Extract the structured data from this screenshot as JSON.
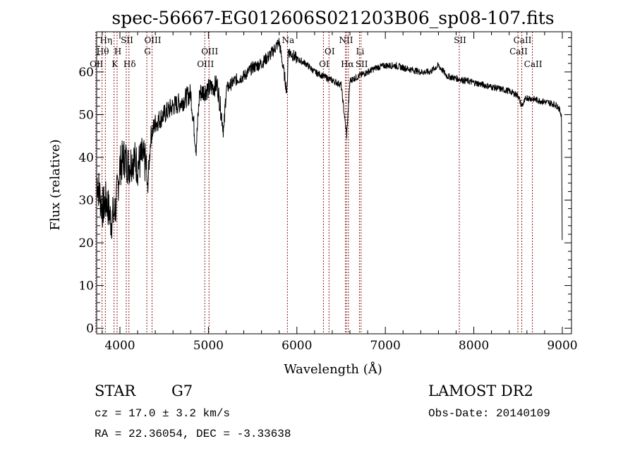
{
  "chart_data": {
    "type": "line",
    "title": "spec-56667-EG012606S021203B06_sp08-107.fits",
    "xlabel": "Wavelength (Å)",
    "ylabel": "Flux (relative)",
    "xlim": [
      3737,
      9104
    ],
    "ylim": [
      -1.3,
      69.4
    ],
    "xticks": [
      4000,
      5000,
      6000,
      7000,
      8000,
      9000
    ],
    "yticks": [
      0,
      10,
      20,
      30,
      40,
      50,
      60
    ],
    "series": [
      {
        "name": "spectrum",
        "x": [
          3740,
          3800,
          3850,
          3900,
          3950,
          4000,
          4050,
          4100,
          4150,
          4200,
          4250,
          4300,
          4310,
          4350,
          4400,
          4500,
          4600,
          4700,
          4800,
          4861,
          4900,
          5000,
          5100,
          5175,
          5200,
          5300,
          5400,
          5500,
          5600,
          5700,
          5800,
          5890,
          5900,
          6000,
          6100,
          6200,
          6300,
          6400,
          6500,
          6563,
          6600,
          6700,
          6800,
          6900,
          7000,
          7100,
          7200,
          7300,
          7400,
          7500,
          7600,
          7700,
          7800,
          7900,
          8000,
          8100,
          8200,
          8300,
          8400,
          8500,
          8540,
          8600,
          8700,
          8800,
          8900,
          8950,
          8990,
          9000
        ],
        "y": [
          35,
          28,
          30,
          25,
          28,
          38,
          40,
          38,
          40,
          38,
          40,
          38,
          32,
          45,
          48,
          50,
          52,
          53,
          55,
          42,
          55,
          56,
          57,
          46,
          56,
          58,
          59,
          61,
          62,
          64,
          67,
          55,
          65,
          63,
          62,
          60,
          59,
          58,
          57,
          45,
          58,
          59,
          60,
          61,
          61.5,
          61.5,
          61,
          60.5,
          60,
          60,
          61.5,
          59,
          58.5,
          58,
          57.5,
          57,
          56.5,
          56,
          55.5,
          54.5,
          52,
          54,
          53.5,
          53,
          52.5,
          52,
          50,
          17
        ]
      }
    ],
    "lines": [
      {
        "label": "OII",
        "wave": 3727,
        "row": 3
      },
      {
        "label": "Hθ",
        "wave": 3798,
        "row": 2
      },
      {
        "label": "Hη",
        "wave": 3835,
        "row": 1
      },
      {
        "label": "K",
        "wave": 3934,
        "row": 3
      },
      {
        "label": "H",
        "wave": 3968,
        "row": 2
      },
      {
        "label": "SII",
        "wave": 4072,
        "row": 1
      },
      {
        "label": "Hδ",
        "wave": 4102,
        "row": 3
      },
      {
        "label": "G",
        "wave": 4304,
        "row": 2
      },
      {
        "label": "OIII",
        "wave": 4363,
        "row": 1
      },
      {
        "label": "OIII",
        "wave": 4959,
        "row": 3
      },
      {
        "label": "OIII",
        "wave": 5007,
        "row": 2
      },
      {
        "label": "Na",
        "wave": 5893,
        "row": 1
      },
      {
        "label": "OI",
        "wave": 6300,
        "row": 3
      },
      {
        "label": "OI",
        "wave": 6363,
        "row": 2
      },
      {
        "label": "NII",
        "wave": 6548,
        "row": 1
      },
      {
        "label": "Hα",
        "wave": 6563,
        "row": 3
      },
      {
        "label": "NII",
        "wave": 6583,
        "row": 0
      },
      {
        "label": "Li",
        "wave": 6707,
        "row": 2
      },
      {
        "label": "SII",
        "wave": 6725,
        "row": 3
      },
      {
        "label": "SII",
        "wave": 7836,
        "row": 1
      },
      {
        "label": "CaII",
        "wave": 8498,
        "row": 2
      },
      {
        "label": "CaII",
        "wave": 8542,
        "row": 1
      },
      {
        "label": "CaII",
        "wave": 8662,
        "row": 3
      }
    ]
  },
  "info": {
    "class": "STAR",
    "subclass": "G7",
    "survey": "LAMOST DR2",
    "cz": "cz = 17.0 ± 3.2 km/s",
    "obsdate": "Obs-Date: 20140109",
    "radec": "RA =  22.36054, DEC =  -3.33638"
  }
}
